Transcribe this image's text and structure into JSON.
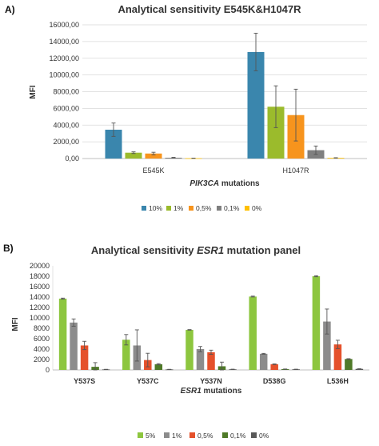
{
  "chart_data": [
    {
      "panel_label": "A)",
      "type": "bar",
      "title": "Analytical sensitivity E545K&H1047R",
      "title_parts": [
        {
          "text": "Analytical sensitivity E545K&H1047R",
          "italic": false
        }
      ],
      "xlabel_parts": [
        {
          "text": "PIK3CA",
          "italic": true
        },
        {
          "text": " mutations",
          "italic": false
        }
      ],
      "ylabel": "MFI",
      "ylim": [
        0,
        16000
      ],
      "yticks": [
        "0,00",
        "2000,00",
        "4000,00",
        "6000,00",
        "8000,00",
        "10000,00",
        "12000,00",
        "14000,00",
        "16000,00"
      ],
      "categories": [
        "E545K",
        "H1047R"
      ],
      "category_bold": false,
      "gridlines": true,
      "legend_position": "bottom",
      "series": [
        {
          "name": "10%",
          "color": "#3a86ad",
          "values": [
            3450,
            12750
          ],
          "errors": [
            800,
            2250
          ]
        },
        {
          "name": "1%",
          "color": "#9bbb2c",
          "values": [
            700,
            6200
          ],
          "errors": [
            100,
            2500
          ]
        },
        {
          "name": "0,5%",
          "color": "#f7941d",
          "values": [
            600,
            5200
          ],
          "errors": [
            150,
            3100
          ]
        },
        {
          "name": "0,1%",
          "color": "#7f7f7f",
          "values": [
            100,
            1000
          ],
          "errors": [
            40,
            500
          ]
        },
        {
          "name": "0%",
          "color": "#ffc000",
          "values": [
            40,
            80
          ],
          "errors": [
            10,
            20
          ]
        }
      ]
    },
    {
      "panel_label": "B)",
      "type": "bar",
      "title": "Analytical sensitivity ESR1 mutation panel",
      "title_parts": [
        {
          "text": "Analytical sensitivity ",
          "italic": false
        },
        {
          "text": "ESR1",
          "italic": true
        },
        {
          "text": " mutation panel",
          "italic": false
        }
      ],
      "xlabel_parts": [
        {
          "text": "ESR1",
          "italic": true
        },
        {
          "text": " mutations",
          "italic": false
        }
      ],
      "ylabel": "MFI",
      "ylim": [
        0,
        20000
      ],
      "yticks": [
        "0",
        "2000",
        "4000",
        "6000",
        "8000",
        "10000",
        "12000",
        "14000",
        "16000",
        "18000",
        "20000"
      ],
      "categories": [
        "Y537S",
        "Y537C",
        "Y537N",
        "D538G",
        "L536H"
      ],
      "category_bold": true,
      "gridlines": false,
      "legend_position": "bottom",
      "series": [
        {
          "name": "5%",
          "color": "#8dc63f",
          "values": [
            13700,
            5800,
            7700,
            14100,
            18000
          ],
          "errors": [
            100,
            1000,
            50,
            80,
            100
          ]
        },
        {
          "name": "1%",
          "color": "#8c8c8c",
          "values": [
            9100,
            4700,
            4000,
            3100,
            9300
          ],
          "errors": [
            700,
            3000,
            500,
            80,
            2400
          ]
        },
        {
          "name": "0,5%",
          "color": "#e5512b",
          "values": [
            4700,
            1900,
            3400,
            1100,
            4900
          ],
          "errors": [
            800,
            1300,
            400,
            60,
            800
          ]
        },
        {
          "name": "0,1%",
          "color": "#4f7a28",
          "values": [
            600,
            1100,
            700,
            150,
            2100
          ],
          "errors": [
            800,
            100,
            800,
            30,
            60
          ]
        },
        {
          "name": "0%",
          "color": "#595959",
          "values": [
            100,
            100,
            120,
            120,
            200
          ],
          "errors": [
            20,
            20,
            20,
            20,
            30
          ]
        }
      ]
    }
  ]
}
